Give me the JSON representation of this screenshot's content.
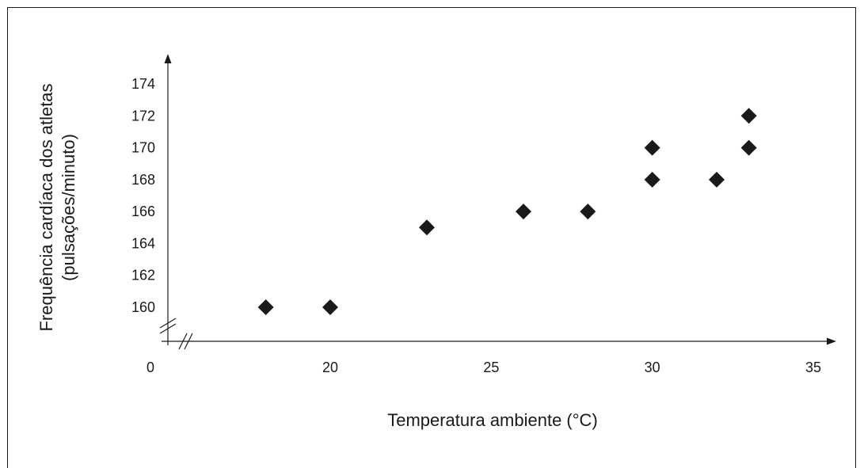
{
  "chart_data": {
    "type": "scatter",
    "title": "",
    "xlabel": "Temperatura ambiente (°C)",
    "ylabel_line1": "Frequência cardíaca dos atletas",
    "ylabel_line2": "(pulsações/minuto)",
    "x_origin_label": "0",
    "x_ticks": [
      20,
      25,
      30,
      35
    ],
    "y_ticks": [
      160,
      162,
      164,
      166,
      168,
      170,
      172,
      174
    ],
    "x_axis_break": true,
    "y_axis_break": true,
    "grid": false,
    "marker": "diamond",
    "marker_color": "#1a1a1a",
    "points": [
      {
        "x": 18,
        "y": 160
      },
      {
        "x": 20,
        "y": 160
      },
      {
        "x": 23,
        "y": 165
      },
      {
        "x": 26,
        "y": 166
      },
      {
        "x": 28,
        "y": 166
      },
      {
        "x": 30,
        "y": 168
      },
      {
        "x": 30,
        "y": 170
      },
      {
        "x": 32,
        "y": 168
      },
      {
        "x": 33,
        "y": 170
      },
      {
        "x": 33,
        "y": 172
      }
    ]
  }
}
